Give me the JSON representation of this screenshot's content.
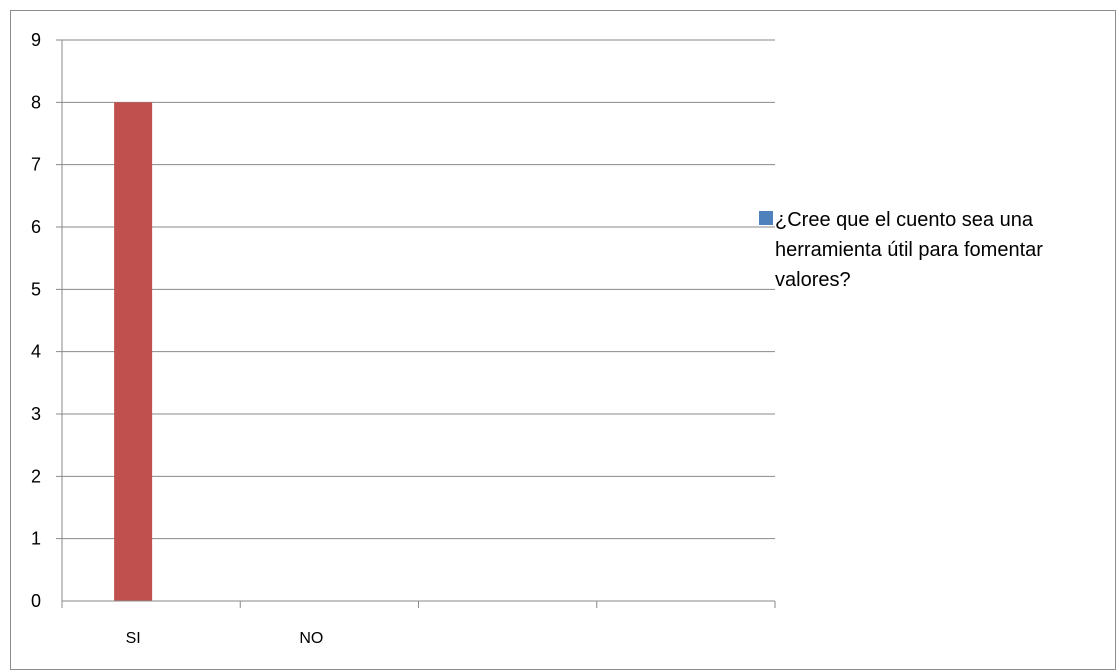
{
  "chart_data": {
    "type": "bar",
    "title": "",
    "xlabel": "",
    "ylabel": "",
    "categories": [
      "SI",
      "NO"
    ],
    "series": [
      {
        "name": "¿Cree que el cuento sea una herramienta útil para fomentar valores?",
        "legend_lines": [
          "¿Cree que el cuento sea una",
          "herramienta útil para fomentar",
          "valores?"
        ],
        "values": [
          8,
          0
        ],
        "color": "#c0504d",
        "legend_color": "#4f81bd"
      }
    ],
    "ylim": [
      0,
      9
    ],
    "yticks": [
      0,
      1,
      2,
      3,
      4,
      5,
      6,
      7,
      8,
      9
    ],
    "grid": true,
    "legend_position": "right"
  }
}
